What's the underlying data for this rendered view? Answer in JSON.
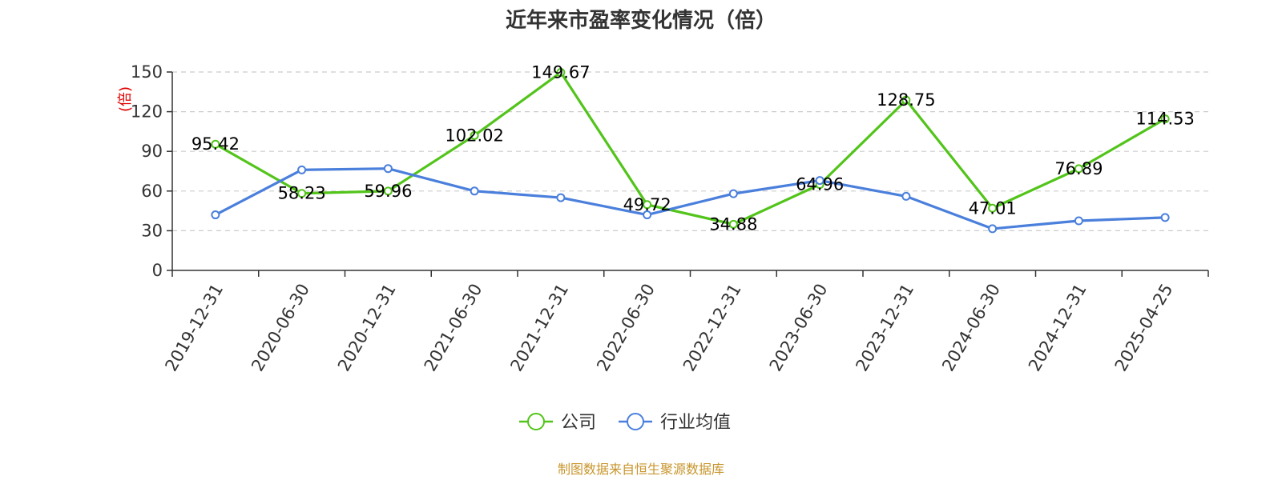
{
  "chart_data": {
    "type": "line",
    "title": "近年来市盈率变化情况（倍）",
    "ylabel": "(倍)",
    "ylim": [
      0,
      150
    ],
    "yticks": [
      0,
      30,
      60,
      90,
      120,
      150
    ],
    "grid": true,
    "legend_position": "bottom-center",
    "categories": [
      "2019-12-31",
      "2020-06-30",
      "2020-12-31",
      "2021-06-30",
      "2021-12-31",
      "2022-06-30",
      "2022-12-31",
      "2023-06-30",
      "2023-12-31",
      "2024-06-30",
      "2024-12-31",
      "2025-04-25"
    ],
    "series": [
      {
        "name": "公司",
        "color": "#52c41a",
        "values": [
          95.42,
          58.23,
          59.96,
          102.02,
          149.67,
          49.72,
          34.88,
          64.96,
          128.75,
          47.01,
          76.89,
          114.53
        ],
        "labels": [
          "95.42",
          "58.23",
          "59.96",
          "102.02",
          "149.67",
          "49.72",
          "34.88",
          "64.96",
          "128.75",
          "47.01",
          "76.89",
          "114.53"
        ]
      },
      {
        "name": "行业均值",
        "color": "#4a7fdc",
        "values": [
          42,
          76,
          77,
          60,
          55,
          42,
          58,
          68,
          56,
          31.5,
          37.5,
          40
        ]
      }
    ],
    "source": "制图数据来自恒生聚源数据库"
  }
}
